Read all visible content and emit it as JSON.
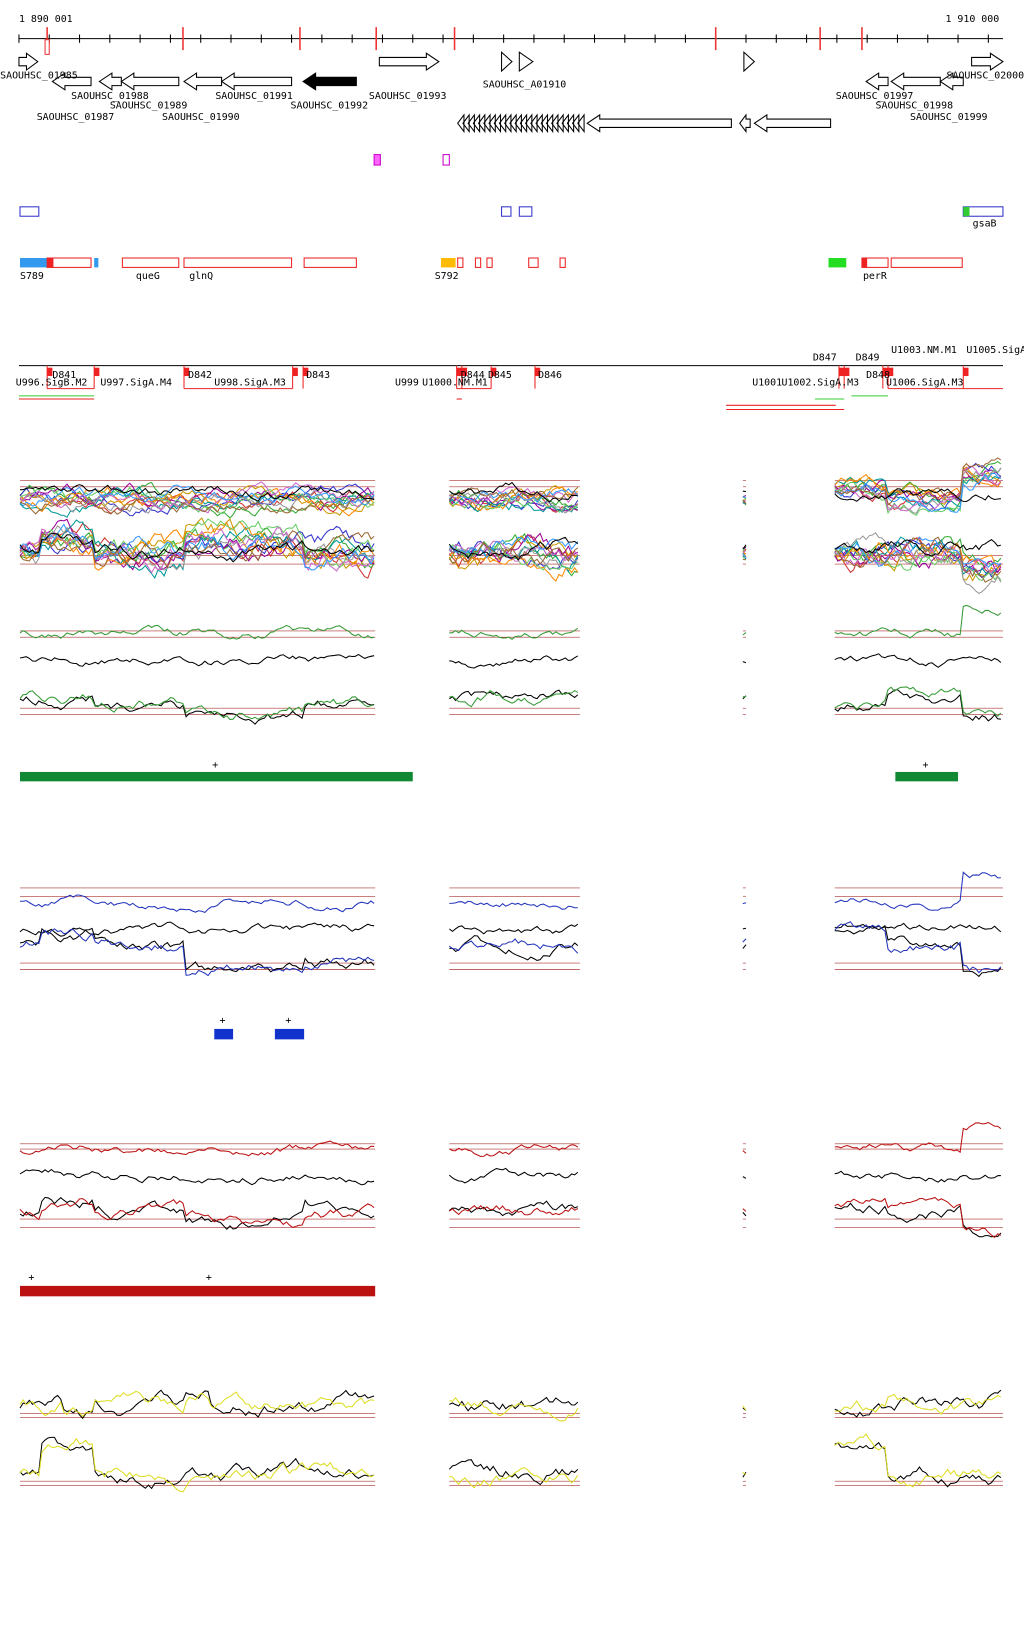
{
  "ruler": {
    "start": "1 890 001",
    "end": "1 910 000"
  },
  "genes": [
    "SAOUHSC_01985",
    "SAOUHSC_01988",
    "SAOUHSC_01989",
    "SAOUHSC_01991",
    "SAOUHSC_01992",
    "SAOUHSC_01993",
    "SAOUHSC_A01910",
    "SAOUHSC_01987",
    "SAOUHSC_01990",
    "SAOUHSC_01997",
    "SAOUHSC_01998",
    "SAOUHSC_01999",
    "SAOUHSC_02000"
  ],
  "features": [
    "gsaB",
    "S789",
    "queG",
    "glnQ",
    "S792",
    "perR"
  ],
  "segments": [
    "D841",
    "U996.SigB.M2",
    "U997.SigA.M4",
    "D842",
    "U998.SigA.M3",
    "D843",
    "U999",
    "U1000.NM.M1",
    "D844",
    "D845",
    "D846",
    "U1001",
    "U1002.SigA.M3",
    "D847",
    "D849",
    "D848",
    "U1003.NM.M1",
    "U1005.SigA",
    "U1006.SigA.M3"
  ],
  "markers": {
    "green": [
      "+",
      "+"
    ],
    "blue": [
      "+",
      "+"
    ],
    "red": [
      "+",
      "+"
    ]
  }
}
